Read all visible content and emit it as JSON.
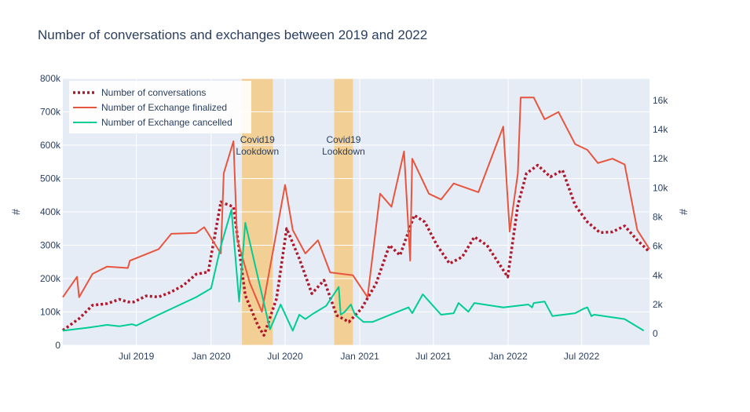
{
  "chart_data": {
    "type": "line",
    "title": "Number of conversations and exchanges between 2019 and 2022",
    "ylabel_left": "#",
    "ylabel_right": "#",
    "x_range": [
      "2019-01-01",
      "2022-12-15"
    ],
    "y_left_range": [
      0,
      800000
    ],
    "y_right_range": [
      -800,
      17500
    ],
    "x_ticks": [
      {
        "date": "2019-07-01",
        "label": "Jul 2019"
      },
      {
        "date": "2020-01-01",
        "label": "Jan 2020"
      },
      {
        "date": "2020-07-01",
        "label": "Jul 2020"
      },
      {
        "date": "2021-01-01",
        "label": "Jan 2021"
      },
      {
        "date": "2021-07-01",
        "label": "Jul 2021"
      },
      {
        "date": "2022-01-01",
        "label": "Jan 2022"
      },
      {
        "date": "2022-07-01",
        "label": "Jul 2022"
      }
    ],
    "y_left_ticks": [
      {
        "value": 0,
        "label": "0"
      },
      {
        "value": 100000,
        "label": "100k"
      },
      {
        "value": 200000,
        "label": "200k"
      },
      {
        "value": 300000,
        "label": "300k"
      },
      {
        "value": 400000,
        "label": "400k"
      },
      {
        "value": 500000,
        "label": "500k"
      },
      {
        "value": 600000,
        "label": "600k"
      },
      {
        "value": 700000,
        "label": "700k"
      },
      {
        "value": 800000,
        "label": "800k"
      }
    ],
    "y_right_ticks": [
      {
        "value": 0,
        "label": "0"
      },
      {
        "value": 2000,
        "label": "2k"
      },
      {
        "value": 4000,
        "label": "4k"
      },
      {
        "value": 6000,
        "label": "6k"
      },
      {
        "value": 8000,
        "label": "8k"
      },
      {
        "value": 10000,
        "label": "10k"
      },
      {
        "value": 12000,
        "label": "12k"
      },
      {
        "value": 14000,
        "label": "14k"
      },
      {
        "value": 16000,
        "label": "16k"
      }
    ],
    "shaded_periods": [
      {
        "start": "2020-03-17",
        "end": "2020-06-01",
        "label_line1": "Covid19",
        "label_line2": "Lookdown",
        "color": "#f2cf95"
      },
      {
        "start": "2020-10-30",
        "end": "2020-12-15",
        "label_line1": "Covid19",
        "label_line2": "Lookdown",
        "color": "#f2cf95"
      }
    ],
    "legend_position": "top-left",
    "series": [
      {
        "name": "Number of conversations",
        "axis": "left",
        "color": "#b2182b",
        "dash": "dot",
        "width": 3.5,
        "points": [
          [
            "2019-01-01",
            45000
          ],
          [
            "2019-02-10",
            80000
          ],
          [
            "2019-03-15",
            120000
          ],
          [
            "2019-04-20",
            125000
          ],
          [
            "2019-05-20",
            138000
          ],
          [
            "2019-06-10",
            130000
          ],
          [
            "2019-06-25",
            130000
          ],
          [
            "2019-07-25",
            148000
          ],
          [
            "2019-08-25",
            145000
          ],
          [
            "2019-09-25",
            160000
          ],
          [
            "2019-10-25",
            180000
          ],
          [
            "2019-11-25",
            213000
          ],
          [
            "2019-12-25",
            220000
          ],
          [
            "2020-01-25",
            430000
          ],
          [
            "2020-02-25",
            415000
          ],
          [
            "2020-03-25",
            150000
          ],
          [
            "2020-04-25",
            60000
          ],
          [
            "2020-05-10",
            30000
          ],
          [
            "2020-06-10",
            140000
          ],
          [
            "2020-07-05",
            350000
          ],
          [
            "2020-08-05",
            260000
          ],
          [
            "2020-09-05",
            155000
          ],
          [
            "2020-10-05",
            195000
          ],
          [
            "2020-11-05",
            90000
          ],
          [
            "2020-12-05",
            70000
          ],
          [
            "2021-01-05",
            110000
          ],
          [
            "2021-02-10",
            185000
          ],
          [
            "2021-03-15",
            300000
          ],
          [
            "2021-04-10",
            270000
          ],
          [
            "2021-05-15",
            390000
          ],
          [
            "2021-06-10",
            370000
          ],
          [
            "2021-07-10",
            300000
          ],
          [
            "2021-08-10",
            245000
          ],
          [
            "2021-09-10",
            265000
          ],
          [
            "2021-10-10",
            325000
          ],
          [
            "2021-11-10",
            300000
          ],
          [
            "2021-12-31",
            205000
          ],
          [
            "2022-01-25",
            420000
          ],
          [
            "2022-02-15",
            515000
          ],
          [
            "2022-03-15",
            540000
          ],
          [
            "2022-04-15",
            505000
          ],
          [
            "2022-05-15",
            525000
          ],
          [
            "2022-06-15",
            420000
          ],
          [
            "2022-07-15",
            370000
          ],
          [
            "2022-08-15",
            338000
          ],
          [
            "2022-09-15",
            340000
          ],
          [
            "2022-10-15",
            358000
          ],
          [
            "2022-11-15",
            315000
          ],
          [
            "2022-12-15",
            280000
          ]
        ]
      },
      {
        "name": "Number of Exchange finalized",
        "axis": "right",
        "color": "#e8553e",
        "dash": "solid",
        "width": 2,
        "points": [
          [
            "2019-01-01",
            2500
          ],
          [
            "2019-02-05",
            3900
          ],
          [
            "2019-02-10",
            2500
          ],
          [
            "2019-03-15",
            4100
          ],
          [
            "2019-04-20",
            4600
          ],
          [
            "2019-06-10",
            4500
          ],
          [
            "2019-06-15",
            5000
          ],
          [
            "2019-08-25",
            5800
          ],
          [
            "2019-09-25",
            6850
          ],
          [
            "2019-11-25",
            6900
          ],
          [
            "2019-12-15",
            7300
          ],
          [
            "2020-01-25",
            5500
          ],
          [
            "2020-02-01",
            11000
          ],
          [
            "2020-02-25",
            13200
          ],
          [
            "2020-03-05",
            6500
          ],
          [
            "2020-04-05",
            3500
          ],
          [
            "2020-05-05",
            1500
          ],
          [
            "2020-07-01",
            10200
          ],
          [
            "2020-07-20",
            7100
          ],
          [
            "2020-08-20",
            5500
          ],
          [
            "2020-09-20",
            6400
          ],
          [
            "2020-10-20",
            4200
          ],
          [
            "2020-12-15",
            4000
          ],
          [
            "2021-01-20",
            2500
          ],
          [
            "2021-02-20",
            9600
          ],
          [
            "2021-03-20",
            8700
          ],
          [
            "2021-04-20",
            12500
          ],
          [
            "2021-05-05",
            5000
          ],
          [
            "2021-05-10",
            12000
          ],
          [
            "2021-06-20",
            9600
          ],
          [
            "2021-07-20",
            9200
          ],
          [
            "2021-08-20",
            10300
          ],
          [
            "2021-10-20",
            9700
          ],
          [
            "2021-12-20",
            14200
          ],
          [
            "2022-01-05",
            7000
          ],
          [
            "2022-01-25",
            11000
          ],
          [
            "2022-02-01",
            16200
          ],
          [
            "2022-03-05",
            16200
          ],
          [
            "2022-04-01",
            14700
          ],
          [
            "2022-05-05",
            15200
          ],
          [
            "2022-06-15",
            13000
          ],
          [
            "2022-07-15",
            12600
          ],
          [
            "2022-08-10",
            11700
          ],
          [
            "2022-09-15",
            12000
          ],
          [
            "2022-10-15",
            11600
          ],
          [
            "2022-11-15",
            7100
          ],
          [
            "2022-12-15",
            5800
          ]
        ]
      },
      {
        "name": "Number of Exchange cancelled",
        "axis": "right",
        "color": "#00cc96",
        "dash": "solid",
        "width": 2,
        "points": [
          [
            "2019-01-01",
            200
          ],
          [
            "2019-03-01",
            400
          ],
          [
            "2019-04-20",
            600
          ],
          [
            "2019-05-20",
            500
          ],
          [
            "2019-06-20",
            650
          ],
          [
            "2019-07-01",
            550
          ],
          [
            "2019-08-25",
            1300
          ],
          [
            "2019-11-25",
            2500
          ],
          [
            "2020-01-01",
            3100
          ],
          [
            "2020-01-25",
            6000
          ],
          [
            "2020-02-20",
            8500
          ],
          [
            "2020-03-10",
            2200
          ],
          [
            "2020-03-25",
            7600
          ],
          [
            "2020-05-25",
            300
          ],
          [
            "2020-06-20",
            2000
          ],
          [
            "2020-07-20",
            200
          ],
          [
            "2020-08-05",
            1300
          ],
          [
            "2020-08-20",
            1000
          ],
          [
            "2020-09-10",
            1400
          ],
          [
            "2020-10-10",
            1900
          ],
          [
            "2020-11-10",
            3200
          ],
          [
            "2020-11-15",
            1300
          ],
          [
            "2020-11-25",
            1500
          ],
          [
            "2020-12-10",
            2000
          ],
          [
            "2020-12-20",
            1300
          ],
          [
            "2021-01-10",
            800
          ],
          [
            "2021-02-01",
            800
          ],
          [
            "2021-05-01",
            1800
          ],
          [
            "2021-05-10",
            1400
          ],
          [
            "2021-06-05",
            2700
          ],
          [
            "2021-07-20",
            1300
          ],
          [
            "2021-08-20",
            1400
          ],
          [
            "2021-09-01",
            2100
          ],
          [
            "2021-09-25",
            1500
          ],
          [
            "2021-10-10",
            2100
          ],
          [
            "2021-12-20",
            1800
          ],
          [
            "2022-02-20",
            2000
          ],
          [
            "2022-03-01",
            1800
          ],
          [
            "2022-03-05",
            2100
          ],
          [
            "2022-04-01",
            2200
          ],
          [
            "2022-04-20",
            1200
          ],
          [
            "2022-06-15",
            1400
          ],
          [
            "2022-07-05",
            1700
          ],
          [
            "2022-07-15",
            1800
          ],
          [
            "2022-07-25",
            1200
          ],
          [
            "2022-08-01",
            1300
          ],
          [
            "2022-10-15",
            1000
          ],
          [
            "2022-12-01",
            200
          ]
        ]
      }
    ]
  }
}
